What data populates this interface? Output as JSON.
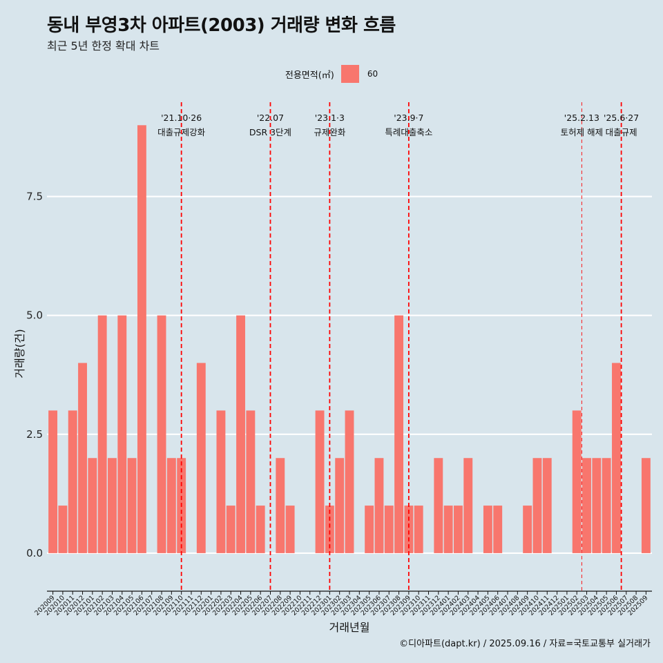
{
  "title": "동내 부영3차 아파트(2003) 거래량 변화 흐름",
  "subtitle": "최근 5년 한정 확대 차트",
  "caption": "©디아파트(dapt.kr) / 2025.09.16 / 자료=국토교통부 실거래가",
  "legend": {
    "title": "전용면적(㎡)",
    "item": "60",
    "color": "#f8766d"
  },
  "chart_data": {
    "type": "bar",
    "xlabel": "거래년월",
    "ylabel": "거래량(건)",
    "ylim": [
      -0.8,
      9.6
    ],
    "yticks": [
      "0.0",
      "2.5",
      "5.0",
      "7.5"
    ],
    "ytick_values": [
      0,
      2.5,
      5.0,
      7.5
    ],
    "bar_color": "#f8766d",
    "categories": [
      "202009",
      "202010",
      "202011",
      "202012",
      "202101",
      "202102",
      "202103",
      "202104",
      "202105",
      "202106",
      "202107",
      "202108",
      "202109",
      "202110",
      "202111",
      "202112",
      "202201",
      "202202",
      "202203",
      "202204",
      "202205",
      "202206",
      "202207",
      "202208",
      "202209",
      "202210",
      "202211",
      "202212",
      "202301",
      "202302",
      "202303",
      "202304",
      "202305",
      "202306",
      "202307",
      "202308",
      "202309",
      "202310",
      "202311",
      "202312",
      "202401",
      "202402",
      "202403",
      "202404",
      "202405",
      "202406",
      "202407",
      "202408",
      "202409",
      "202410",
      "202411",
      "202412",
      "202501",
      "202502",
      "202503",
      "202504",
      "202505",
      "202506",
      "202507",
      "202508",
      "202509"
    ],
    "values": [
      3,
      1,
      3,
      4,
      2,
      5,
      2,
      5,
      2,
      9,
      0,
      5,
      2,
      2,
      0,
      4,
      0,
      3,
      1,
      5,
      3,
      1,
      0,
      2,
      1,
      0,
      0,
      3,
      1,
      2,
      3,
      0,
      1,
      2,
      1,
      5,
      1,
      1,
      0,
      2,
      1,
      1,
      2,
      0,
      1,
      1,
      0,
      0,
      1,
      2,
      2,
      0,
      0,
      3,
      2,
      2,
      2,
      4,
      0,
      0,
      2
    ],
    "events": [
      {
        "date": "'21.10·26",
        "label": "대출규제강화",
        "position": 13.0,
        "line": "bold"
      },
      {
        "date": "'22.07",
        "label": "DSR 3단계",
        "position": 22.0,
        "line": "bold"
      },
      {
        "date": "'23.1·3",
        "label": "규제완화",
        "position": 28.0,
        "line": "bold"
      },
      {
        "date": "'23.9·7",
        "label": "특례대출축소",
        "position": 36.0,
        "line": "bold"
      },
      {
        "date": "'25.2.13",
        "label": "토허제 해제",
        "position": 53.5,
        "line": "thin"
      },
      {
        "date": "'25.6·27",
        "label": "대출규제",
        "position": 57.5,
        "line": "bold"
      }
    ]
  }
}
